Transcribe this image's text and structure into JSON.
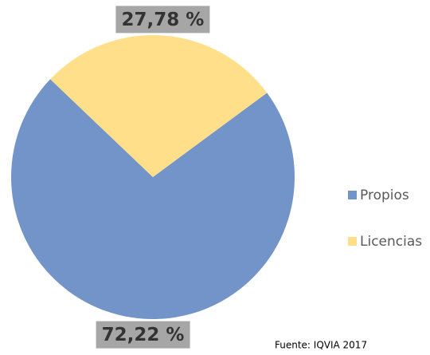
{
  "chart_data": {
    "type": "pie",
    "categories": [
      "Propios",
      "Licencias"
    ],
    "values": [
      72.22,
      27.78
    ],
    "value_labels": [
      "72,22 %",
      "27,78 %"
    ],
    "colors": [
      "#7394C8",
      "#FFDF8A"
    ],
    "legend": "right",
    "annotation": "Fuente: IQVIA 2017"
  }
}
